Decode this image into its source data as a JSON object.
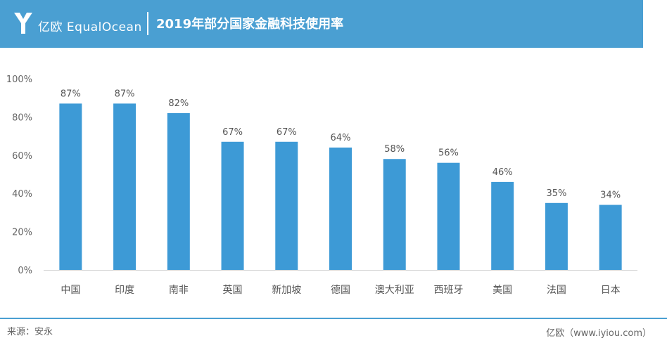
{
  "header": {
    "brand_cn": "亿欧",
    "brand_en": "EqualOcean",
    "title": "2019年部分国家金融科技使用率"
  },
  "colors": {
    "accent": "#4a9fd2",
    "bar": "#3d9ad6"
  },
  "footer": {
    "source": "来源：安永",
    "credit": "亿欧（www.iyiou.com）"
  },
  "chart_data": {
    "type": "bar",
    "title": "2019年部分国家金融科技使用率",
    "categories": [
      "中国",
      "印度",
      "南非",
      "英国",
      "新加坡",
      "德国",
      "澳大利亚",
      "西班牙",
      "美国",
      "法国",
      "日本"
    ],
    "values": [
      87,
      87,
      82,
      67,
      67,
      64,
      58,
      56,
      46,
      35,
      34
    ],
    "value_labels": [
      "87%",
      "87%",
      "82%",
      "67%",
      "67%",
      "64%",
      "58%",
      "56%",
      "46%",
      "35%",
      "34%"
    ],
    "yticks": [
      "0%",
      "20%",
      "40%",
      "60%",
      "80%",
      "100%"
    ],
    "ylim": [
      0,
      100
    ],
    "grid": false,
    "legend": "none"
  }
}
